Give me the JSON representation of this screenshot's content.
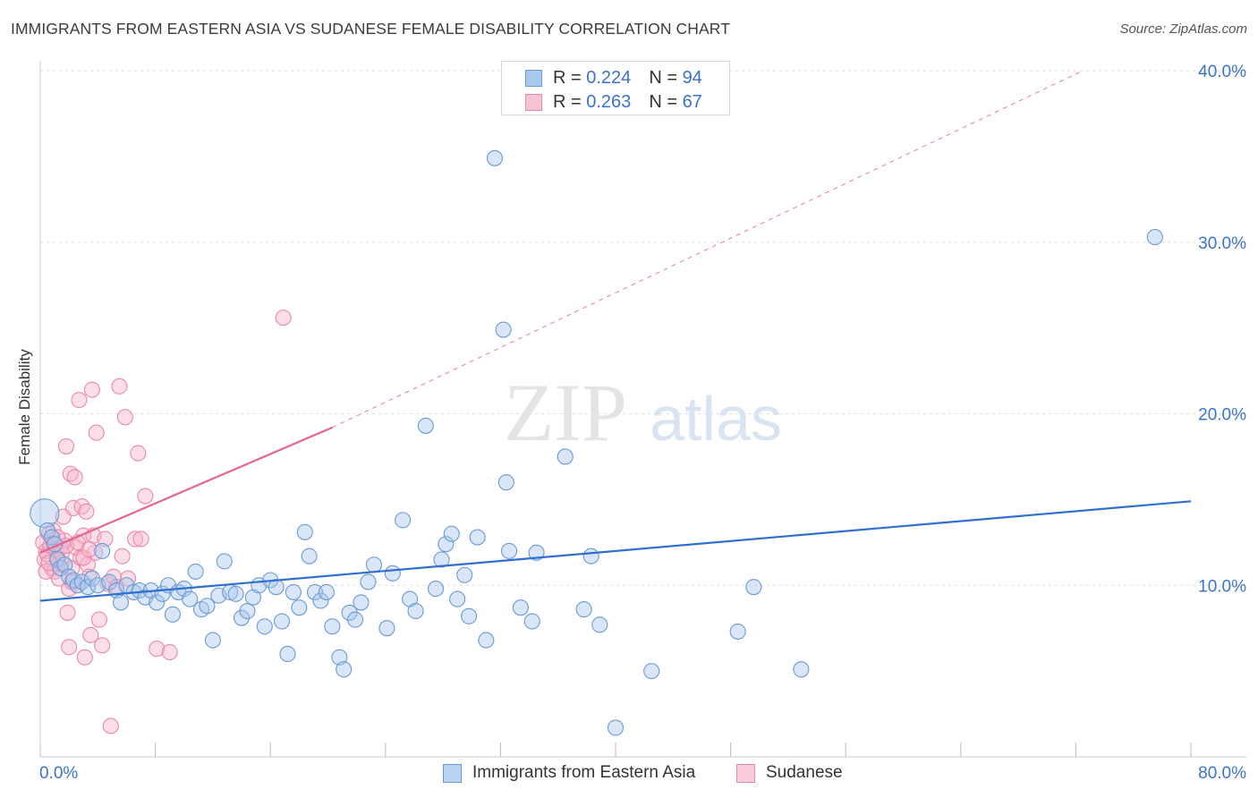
{
  "title": "IMMIGRANTS FROM EASTERN ASIA VS SUDANESE FEMALE DISABILITY CORRELATION CHART",
  "source": "Source: ZipAtlas.com",
  "watermark": {
    "zip": "ZIP",
    "atlas": "atlas"
  },
  "legend": {
    "series1": {
      "r_label": "R = ",
      "r_value": "0.224",
      "n_label": "N = ",
      "n_value": "94"
    },
    "series2": {
      "r_label": "R = ",
      "r_value": "0.263",
      "n_label": "N = ",
      "n_value": "67"
    }
  },
  "colors": {
    "blue_fill": "#a9c8ee",
    "blue_stroke": "#6a9ad4",
    "blue_line": "#2f6fd0",
    "pink_fill": "#f7b6cb",
    "pink_stroke": "#e889a8",
    "pink_line": "#e4648f",
    "tick_label": "#3a73c8",
    "grid": "#dddddd"
  },
  "chart_data": {
    "type": "scatter",
    "title": "IMMIGRANTS FROM EASTERN ASIA VS SUDANESE FEMALE DISABILITY CORRELATION CHART",
    "xlabel": "",
    "ylabel": "Female Disability",
    "xlim": [
      0,
      80
    ],
    "ylim": [
      0,
      40
    ],
    "x_tick_labels": [
      "0.0%",
      "80.0%"
    ],
    "y_tick_labels": [
      "10.0%",
      "20.0%",
      "30.0%",
      "40.0%"
    ],
    "y_ticks": [
      10,
      20,
      30,
      40
    ],
    "grid": "horizontal dashed",
    "legend_placement": "bottom-center",
    "series": [
      {
        "name": "Immigrants from Eastern Asia",
        "color": "#6a9ad4",
        "trend": {
          "x": [
            0,
            80
          ],
          "y": [
            9.1,
            14.9
          ]
        },
        "points": [
          [
            0.3,
            14.2
          ],
          [
            0.5,
            13.2
          ],
          [
            0.8,
            12.8
          ],
          [
            1.0,
            12.4
          ],
          [
            1.2,
            11.5
          ],
          [
            1.4,
            11.0
          ],
          [
            1.7,
            11.2
          ],
          [
            2.0,
            10.5
          ],
          [
            2.3,
            10.3
          ],
          [
            2.6,
            10.0
          ],
          [
            2.9,
            10.2
          ],
          [
            3.3,
            9.9
          ],
          [
            3.6,
            10.4
          ],
          [
            4.0,
            10.0
          ],
          [
            4.3,
            12.0
          ],
          [
            4.8,
            10.2
          ],
          [
            5.3,
            9.7
          ],
          [
            5.6,
            9.0
          ],
          [
            6.0,
            10.0
          ],
          [
            6.5,
            9.6
          ],
          [
            6.9,
            9.7
          ],
          [
            7.3,
            9.3
          ],
          [
            7.7,
            9.7
          ],
          [
            8.1,
            9.0
          ],
          [
            8.5,
            9.5
          ],
          [
            8.9,
            10.0
          ],
          [
            9.2,
            8.3
          ],
          [
            9.6,
            9.6
          ],
          [
            10.0,
            9.8
          ],
          [
            10.4,
            9.2
          ],
          [
            10.8,
            10.8
          ],
          [
            11.2,
            8.6
          ],
          [
            11.6,
            8.8
          ],
          [
            12.0,
            6.8
          ],
          [
            12.4,
            9.4
          ],
          [
            12.8,
            11.4
          ],
          [
            13.2,
            9.6
          ],
          [
            13.6,
            9.5
          ],
          [
            14.0,
            8.1
          ],
          [
            14.4,
            8.5
          ],
          [
            14.8,
            9.3
          ],
          [
            15.2,
            10.0
          ],
          [
            15.6,
            7.6
          ],
          [
            16.0,
            10.3
          ],
          [
            16.4,
            9.9
          ],
          [
            16.8,
            7.9
          ],
          [
            17.2,
            6.0
          ],
          [
            17.6,
            9.6
          ],
          [
            18.0,
            8.7
          ],
          [
            18.4,
            13.1
          ],
          [
            18.7,
            11.7
          ],
          [
            19.1,
            9.6
          ],
          [
            19.5,
            9.1
          ],
          [
            19.9,
            9.6
          ],
          [
            20.3,
            7.6
          ],
          [
            20.8,
            5.8
          ],
          [
            21.1,
            5.1
          ],
          [
            21.5,
            8.4
          ],
          [
            21.9,
            8.0
          ],
          [
            22.3,
            9.0
          ],
          [
            22.8,
            10.2
          ],
          [
            23.2,
            11.2
          ],
          [
            24.1,
            7.5
          ],
          [
            24.5,
            10.7
          ],
          [
            25.2,
            13.8
          ],
          [
            25.7,
            9.2
          ],
          [
            26.1,
            8.5
          ],
          [
            26.8,
            19.3
          ],
          [
            27.5,
            9.8
          ],
          [
            27.9,
            11.5
          ],
          [
            28.2,
            12.4
          ],
          [
            28.6,
            13.0
          ],
          [
            29.0,
            9.2
          ],
          [
            29.5,
            10.6
          ],
          [
            29.8,
            8.2
          ],
          [
            30.4,
            12.8
          ],
          [
            31.0,
            6.8
          ],
          [
            31.6,
            34.9
          ],
          [
            32.2,
            24.9
          ],
          [
            32.4,
            16.0
          ],
          [
            32.6,
            12.0
          ],
          [
            33.4,
            8.7
          ],
          [
            34.2,
            7.9
          ],
          [
            34.5,
            11.9
          ],
          [
            36.5,
            17.5
          ],
          [
            37.8,
            8.6
          ],
          [
            38.3,
            11.7
          ],
          [
            38.9,
            7.7
          ],
          [
            40.0,
            1.7
          ],
          [
            42.5,
            5.0
          ],
          [
            48.5,
            7.3
          ],
          [
            49.6,
            9.9
          ],
          [
            52.9,
            5.1
          ],
          [
            77.5,
            30.3
          ]
        ]
      },
      {
        "name": "Sudanese",
        "color": "#e889a8",
        "trend": {
          "x": [
            0,
            20.3
          ],
          "y": [
            11.9,
            19.2
          ]
        },
        "trend_extension": {
          "x": [
            20.3,
            72.5
          ],
          "y": [
            19.2,
            40.0
          ]
        },
        "points": [
          [
            0.2,
            12.5
          ],
          [
            0.3,
            11.5
          ],
          [
            0.4,
            12.0
          ],
          [
            0.5,
            11.8
          ],
          [
            0.6,
            13.0
          ],
          [
            0.7,
            12.3
          ],
          [
            0.8,
            11.0
          ],
          [
            0.9,
            12.6
          ],
          [
            1.0,
            10.8
          ],
          [
            1.1,
            12.1
          ],
          [
            1.2,
            11.6
          ],
          [
            1.3,
            10.4
          ],
          [
            1.4,
            12.2
          ],
          [
            1.5,
            11.3
          ],
          [
            1.6,
            14.0
          ],
          [
            1.7,
            12.6
          ],
          [
            1.8,
            18.1
          ],
          [
            1.9,
            8.4
          ],
          [
            2.0,
            6.4
          ],
          [
            2.0,
            9.8
          ],
          [
            2.1,
            16.5
          ],
          [
            2.2,
            11.0
          ],
          [
            2.3,
            14.5
          ],
          [
            2.4,
            16.3
          ],
          [
            2.5,
            12.2
          ],
          [
            2.6,
            10.0
          ],
          [
            2.7,
            20.8
          ],
          [
            2.8,
            11.6
          ],
          [
            2.9,
            14.6
          ],
          [
            3.0,
            12.9
          ],
          [
            3.1,
            5.8
          ],
          [
            3.2,
            14.3
          ],
          [
            3.3,
            11.2
          ],
          [
            3.4,
            10.5
          ],
          [
            3.5,
            7.1
          ],
          [
            3.6,
            21.4
          ],
          [
            3.7,
            12.9
          ],
          [
            3.8,
            11.9
          ],
          [
            3.9,
            18.9
          ],
          [
            4.1,
            8.0
          ],
          [
            4.3,
            6.5
          ],
          [
            4.5,
            12.7
          ],
          [
            4.7,
            10.1
          ],
          [
            4.9,
            1.8
          ],
          [
            5.1,
            10.5
          ],
          [
            5.3,
            9.9
          ],
          [
            5.5,
            21.6
          ],
          [
            5.7,
            11.7
          ],
          [
            5.9,
            19.8
          ],
          [
            6.1,
            10.4
          ],
          [
            6.6,
            12.7
          ],
          [
            6.8,
            17.7
          ],
          [
            7.0,
            12.7
          ],
          [
            7.3,
            15.2
          ],
          [
            8.1,
            6.3
          ],
          [
            9.0,
            6.1
          ],
          [
            16.9,
            25.6
          ],
          [
            0.4,
            10.8
          ],
          [
            0.6,
            11.3
          ],
          [
            0.9,
            13.2
          ],
          [
            1.2,
            12.8
          ],
          [
            1.5,
            11.9
          ],
          [
            1.8,
            12.3
          ],
          [
            2.2,
            10.2
          ],
          [
            2.6,
            12.5
          ],
          [
            3.0,
            11.6
          ],
          [
            3.4,
            12.1
          ]
        ]
      }
    ]
  },
  "legend_bottom": {
    "series1": "Immigrants from Eastern Asia",
    "series2": "Sudanese"
  }
}
